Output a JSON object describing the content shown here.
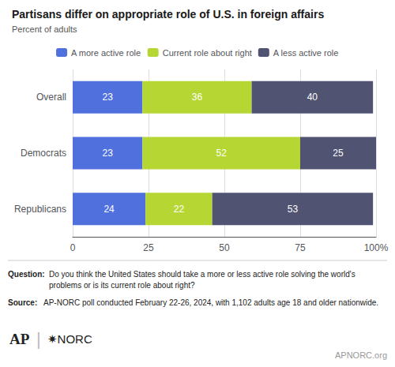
{
  "chart_data": {
    "type": "bar",
    "title": "Partisans differ on appropriate role of U.S. in foreign affairs",
    "subtitle": "Percent of adults",
    "orientation": "horizontal",
    "stacked": true,
    "data_labels": true,
    "grid": true,
    "legend": "top",
    "categories": [
      "Overall",
      "Democrats",
      "Republicans"
    ],
    "series": [
      {
        "name": "A more active role",
        "values": [
          23,
          23,
          24
        ]
      },
      {
        "name": "Current role about right",
        "values": [
          36,
          52,
          22
        ]
      },
      {
        "name": "A less active role",
        "values": [
          40,
          25,
          53
        ]
      }
    ],
    "xlim": [
      0,
      100
    ],
    "xticks": [
      0,
      25,
      50,
      75,
      {
        "value": 100,
        "label": "100%"
      }
    ],
    "annotations": [
      "Question:",
      "Do you think the United States should take a more or less active role solving the world's problems or is its current role about right?",
      "Source:",
      "AP-NORC poll conducted February 22-26, 2024, with 1,102 adults age 18 and older nationwide.",
      "AP",
      "|",
      "✷NORC",
      "APNORC.org"
    ]
  }
}
